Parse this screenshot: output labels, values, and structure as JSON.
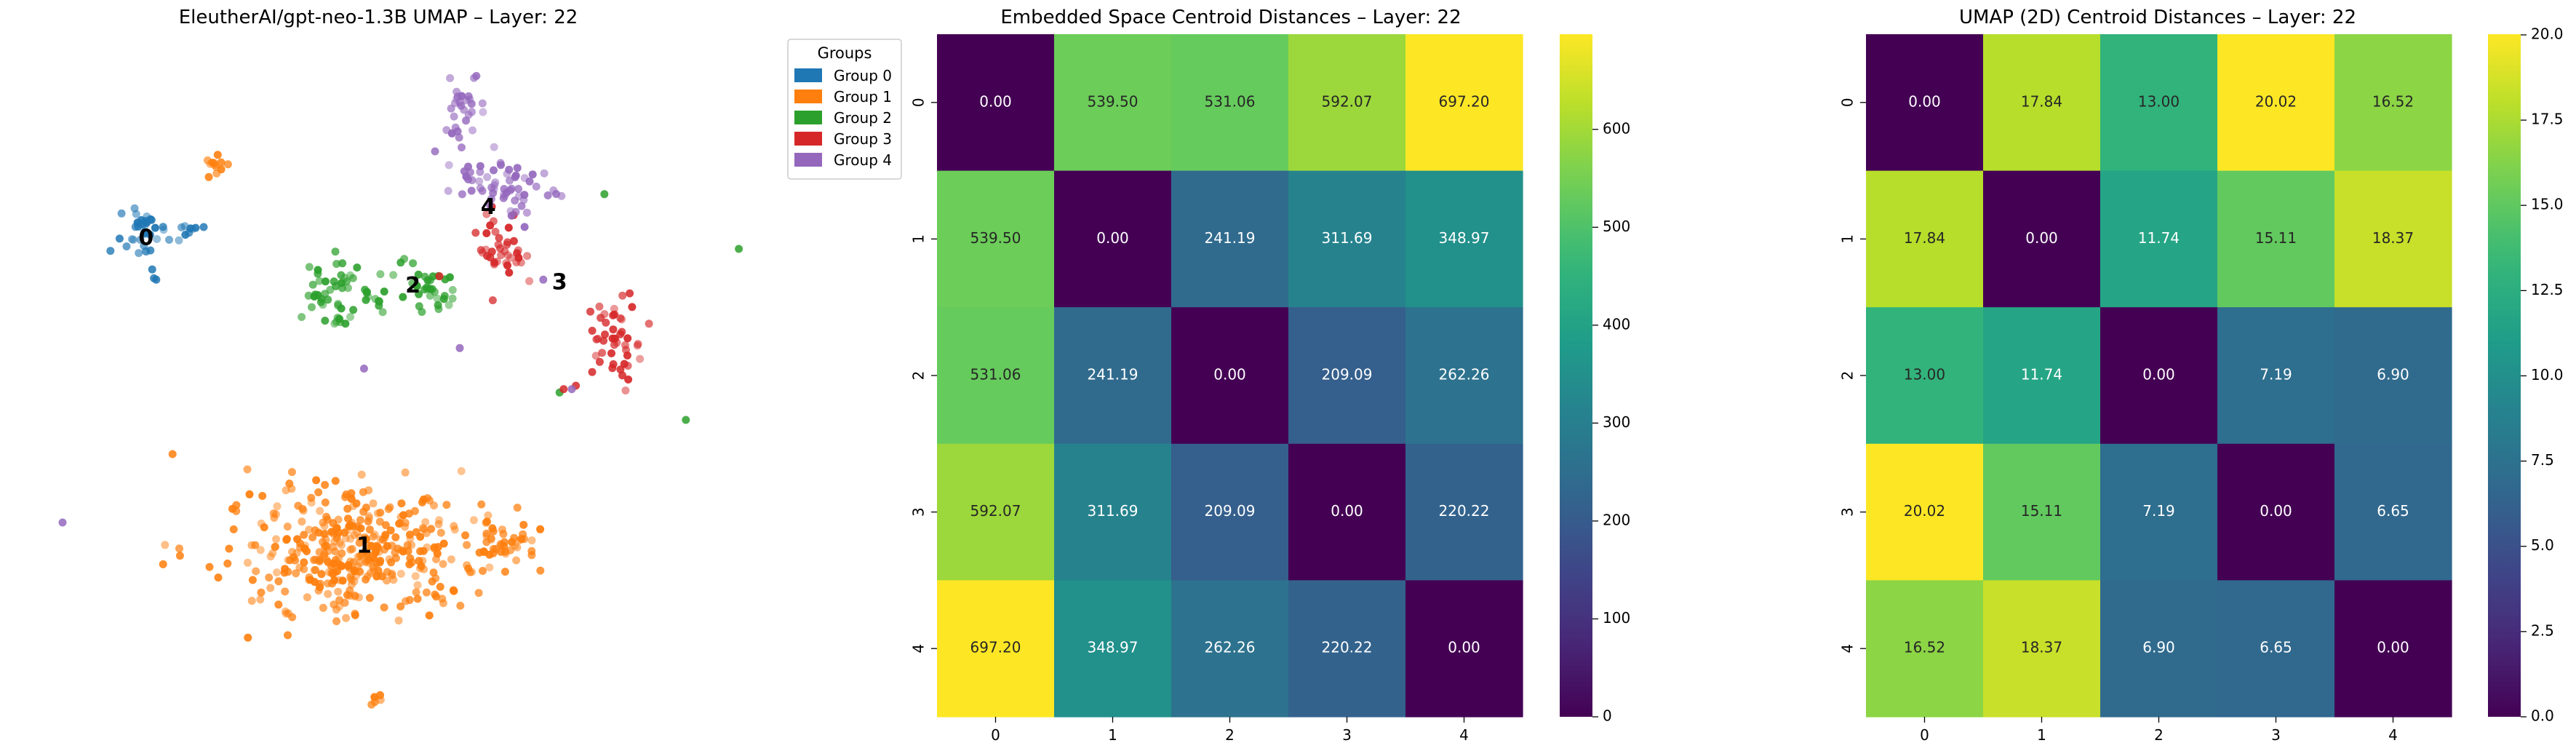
{
  "chart_data": [
    {
      "type": "scatter",
      "title": "EleutherAI/gpt-neo-1.3B UMAP – Layer: 22",
      "xlabel": "",
      "ylabel": "",
      "axes_visible": false,
      "legend": {
        "title": "Groups",
        "placement": "top-right",
        "entries": [
          "Group 0",
          "Group 1",
          "Group 2",
          "Group 3",
          "Group 4"
        ]
      },
      "colors": [
        "#1f77b4",
        "#ff7f0e",
        "#2ca02c",
        "#d62728",
        "#9467bd"
      ],
      "centroid_labels": [
        {
          "label": "0",
          "group": 0,
          "x": 3.05,
          "y": 7.15
        },
        {
          "label": "1",
          "group": 1,
          "x": 8.4,
          "y": 2.65
        },
        {
          "label": "2",
          "group": 2,
          "x": 9.6,
          "y": 6.45
        },
        {
          "label": "3",
          "group": 3,
          "x": 13.2,
          "y": 6.5
        },
        {
          "label": "4",
          "group": 4,
          "x": 11.45,
          "y": 7.6
        }
      ],
      "xlim": [
        0,
        17.5
      ],
      "ylim": [
        0,
        10
      ],
      "series": [
        {
          "group": 0,
          "clusters": [
            {
              "cx": 3.1,
              "cy": 7.2,
              "sx": 0.35,
              "sy": 0.25,
              "n": 35
            },
            {
              "cx": 4.15,
              "cy": 7.3,
              "sx": 0.15,
              "sy": 0.05,
              "n": 8
            }
          ],
          "points": [
            [
              3.3,
              6.55
            ],
            [
              3.2,
              6.7
            ],
            [
              2.4,
              7.15
            ]
          ]
        },
        {
          "group": 1,
          "clusters": [
            {
              "cx": 8.2,
              "cy": 2.6,
              "sx": 1.4,
              "sy": 0.45,
              "n": 380
            },
            {
              "cx": 11.7,
              "cy": 2.7,
              "sx": 0.55,
              "sy": 0.2,
              "n": 45
            },
            {
              "cx": 4.75,
              "cy": 8.25,
              "sx": 0.15,
              "sy": 0.12,
              "n": 12
            },
            {
              "cx": 8.8,
              "cy": 0.4,
              "sx": 0.1,
              "sy": 0.05,
              "n": 5
            }
          ],
          "points": [
            [
              3.7,
              4.0
            ],
            [
              5.2,
              2.9
            ],
            [
              5.05,
              2.4
            ],
            [
              10.6,
              2.0
            ],
            [
              6.3,
              1.8
            ]
          ]
        },
        {
          "group": 2,
          "clusters": [
            {
              "cx": 7.6,
              "cy": 6.35,
              "sx": 0.35,
              "sy": 0.3,
              "n": 45
            },
            {
              "cx": 9.9,
              "cy": 6.4,
              "sx": 0.35,
              "sy": 0.2,
              "n": 35
            },
            {
              "cx": 8.5,
              "cy": 6.3,
              "sx": 0.3,
              "sy": 0.1,
              "n": 10
            }
          ],
          "points": [
            [
              13.2,
              4.9
            ],
            [
              16.3,
              4.5
            ],
            [
              17.6,
              7.0
            ],
            [
              9.3,
              6.8
            ],
            [
              14.3,
              7.8
            ]
          ]
        },
        {
          "group": 3,
          "clusters": [
            {
              "cx": 11.7,
              "cy": 7.05,
              "sx": 0.35,
              "sy": 0.3,
              "n": 40
            },
            {
              "cx": 14.6,
              "cy": 5.6,
              "sx": 0.35,
              "sy": 0.35,
              "n": 45
            }
          ],
          "points": [
            [
              13.6,
              5.0
            ],
            [
              14.0,
              5.2
            ],
            [
              13.3,
              4.95
            ],
            [
              10.25,
              6.6
            ]
          ]
        },
        {
          "group": 4,
          "clusters": [
            {
              "cx": 11.8,
              "cy": 7.9,
              "sx": 0.55,
              "sy": 0.25,
              "n": 60
            },
            {
              "cx": 10.8,
              "cy": 9.05,
              "sx": 0.25,
              "sy": 0.3,
              "n": 30
            }
          ],
          "points": [
            [
              1.0,
              3.0
            ],
            [
              8.4,
              5.25
            ],
            [
              10.75,
              5.55
            ],
            [
              12.8,
              6.55
            ],
            [
              13.5,
              4.95
            ]
          ]
        }
      ]
    },
    {
      "type": "heatmap",
      "title": "Embedded Space Centroid Distances – Layer: 22",
      "x_ticks": [
        "0",
        "1",
        "2",
        "3",
        "4"
      ],
      "y_ticks": [
        "0",
        "1",
        "2",
        "3",
        "4"
      ],
      "colormap": "viridis",
      "vmin": 0,
      "vmax": 697.2,
      "colorbar_ticks": [
        0,
        100,
        200,
        300,
        400,
        500,
        600
      ],
      "colorbar_tick_labels": [
        "0",
        "100",
        "200",
        "300",
        "400",
        "500",
        "600"
      ],
      "values": [
        [
          0.0,
          539.5,
          531.06,
          592.07,
          697.2
        ],
        [
          539.5,
          0.0,
          241.19,
          311.69,
          348.97
        ],
        [
          531.06,
          241.19,
          0.0,
          209.09,
          262.26
        ],
        [
          592.07,
          311.69,
          209.09,
          0.0,
          220.22
        ],
        [
          697.2,
          348.97,
          262.26,
          220.22,
          0.0
        ]
      ],
      "cell_labels": [
        [
          "0.00",
          "539.50",
          "531.06",
          "592.07",
          "697.20"
        ],
        [
          "539.50",
          "0.00",
          "241.19",
          "311.69",
          "348.97"
        ],
        [
          "531.06",
          "241.19",
          "0.00",
          "209.09",
          "262.26"
        ],
        [
          "592.07",
          "311.69",
          "209.09",
          "0.00",
          "220.22"
        ],
        [
          "697.20",
          "348.97",
          "262.26",
          "220.22",
          "0.00"
        ]
      ]
    },
    {
      "type": "heatmap",
      "title": "UMAP (2D) Centroid Distances – Layer: 22",
      "x_ticks": [
        "0",
        "1",
        "2",
        "3",
        "4"
      ],
      "y_ticks": [
        "0",
        "1",
        "2",
        "3",
        "4"
      ],
      "colormap": "viridis",
      "vmin": 0,
      "vmax": 20.02,
      "colorbar_ticks": [
        0,
        2.5,
        5,
        7.5,
        10,
        12.5,
        15,
        17.5,
        20
      ],
      "colorbar_tick_labels": [
        "0.0",
        "2.5",
        "5.0",
        "7.5",
        "10.0",
        "12.5",
        "15.0",
        "17.5",
        "20.0"
      ],
      "values": [
        [
          0.0,
          17.84,
          13.0,
          20.02,
          16.52
        ],
        [
          17.84,
          0.0,
          11.74,
          15.11,
          18.37
        ],
        [
          13.0,
          11.74,
          0.0,
          7.19,
          6.9
        ],
        [
          20.02,
          15.11,
          7.19,
          0.0,
          6.65
        ],
        [
          16.52,
          18.37,
          6.9,
          6.65,
          0.0
        ]
      ],
      "cell_labels": [
        [
          "0.00",
          "17.84",
          "13.00",
          "20.02",
          "16.52"
        ],
        [
          "17.84",
          "0.00",
          "11.74",
          "15.11",
          "18.37"
        ],
        [
          "13.00",
          "11.74",
          "0.00",
          "7.19",
          "6.90"
        ],
        [
          "20.02",
          "15.11",
          "7.19",
          "0.00",
          "6.65"
        ],
        [
          "16.52",
          "18.37",
          "6.90",
          "6.65",
          "0.00"
        ]
      ]
    }
  ]
}
